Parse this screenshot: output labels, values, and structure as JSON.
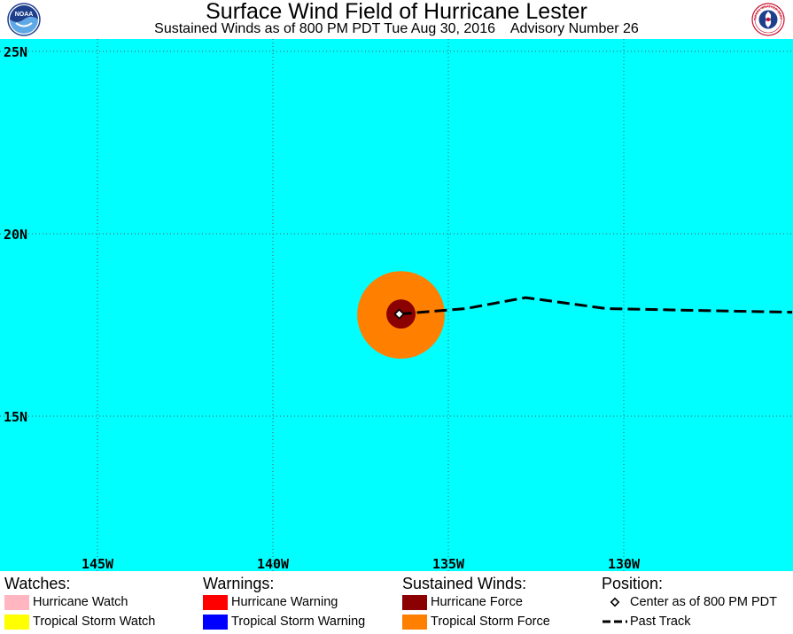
{
  "header": {
    "title": "Surface Wind Field of Hurricane Lester",
    "subtitle": "Sustained Winds as of 800 PM PDT Tue Aug 30, 2016    Advisory Number 26",
    "noaa_logo_text": "NOAA",
    "nws_logo_text": "NATIONAL WEATHER SERVICE"
  },
  "map": {
    "ocean_color": "#00ffff",
    "grid_color": "#555555",
    "lat_labels": [
      "25N",
      "20N",
      "15N"
    ],
    "lon_labels": [
      "145W",
      "140W",
      "135W",
      "130W"
    ],
    "center": {
      "lon": -136.4,
      "lat": 17.8
    },
    "past_track": [
      {
        "lon": -136.4,
        "lat": 17.8
      },
      {
        "lon": -134.5,
        "lat": 17.95
      },
      {
        "lon": -132.8,
        "lat": 18.25
      },
      {
        "lon": -130.5,
        "lat": 17.95
      },
      {
        "lon": -128.0,
        "lat": 17.9
      },
      {
        "lon": -125.2,
        "lat": 17.85
      }
    ],
    "tropical_storm_force_radius_deg": 1.2,
    "hurricane_force_radius_deg": 0.4
  },
  "legend": {
    "watches": {
      "heading": "Watches:",
      "items": [
        {
          "label": "Hurricane Watch",
          "color": "#ffb6c1"
        },
        {
          "label": "Tropical Storm Watch",
          "color": "#ffff00"
        }
      ]
    },
    "warnings": {
      "heading": "Warnings:",
      "items": [
        {
          "label": "Hurricane Warning",
          "color": "#ff0000"
        },
        {
          "label": "Tropical Storm Warning",
          "color": "#0000ff"
        }
      ]
    },
    "winds": {
      "heading": "Sustained Winds:",
      "items": [
        {
          "label": "Hurricane Force",
          "color": "#8b0000"
        },
        {
          "label": "Tropical Storm Force",
          "color": "#ff8000"
        }
      ]
    },
    "position": {
      "heading": "Position:",
      "center_label": "Center as of 800 PM PDT",
      "track_label": "Past Track"
    }
  }
}
